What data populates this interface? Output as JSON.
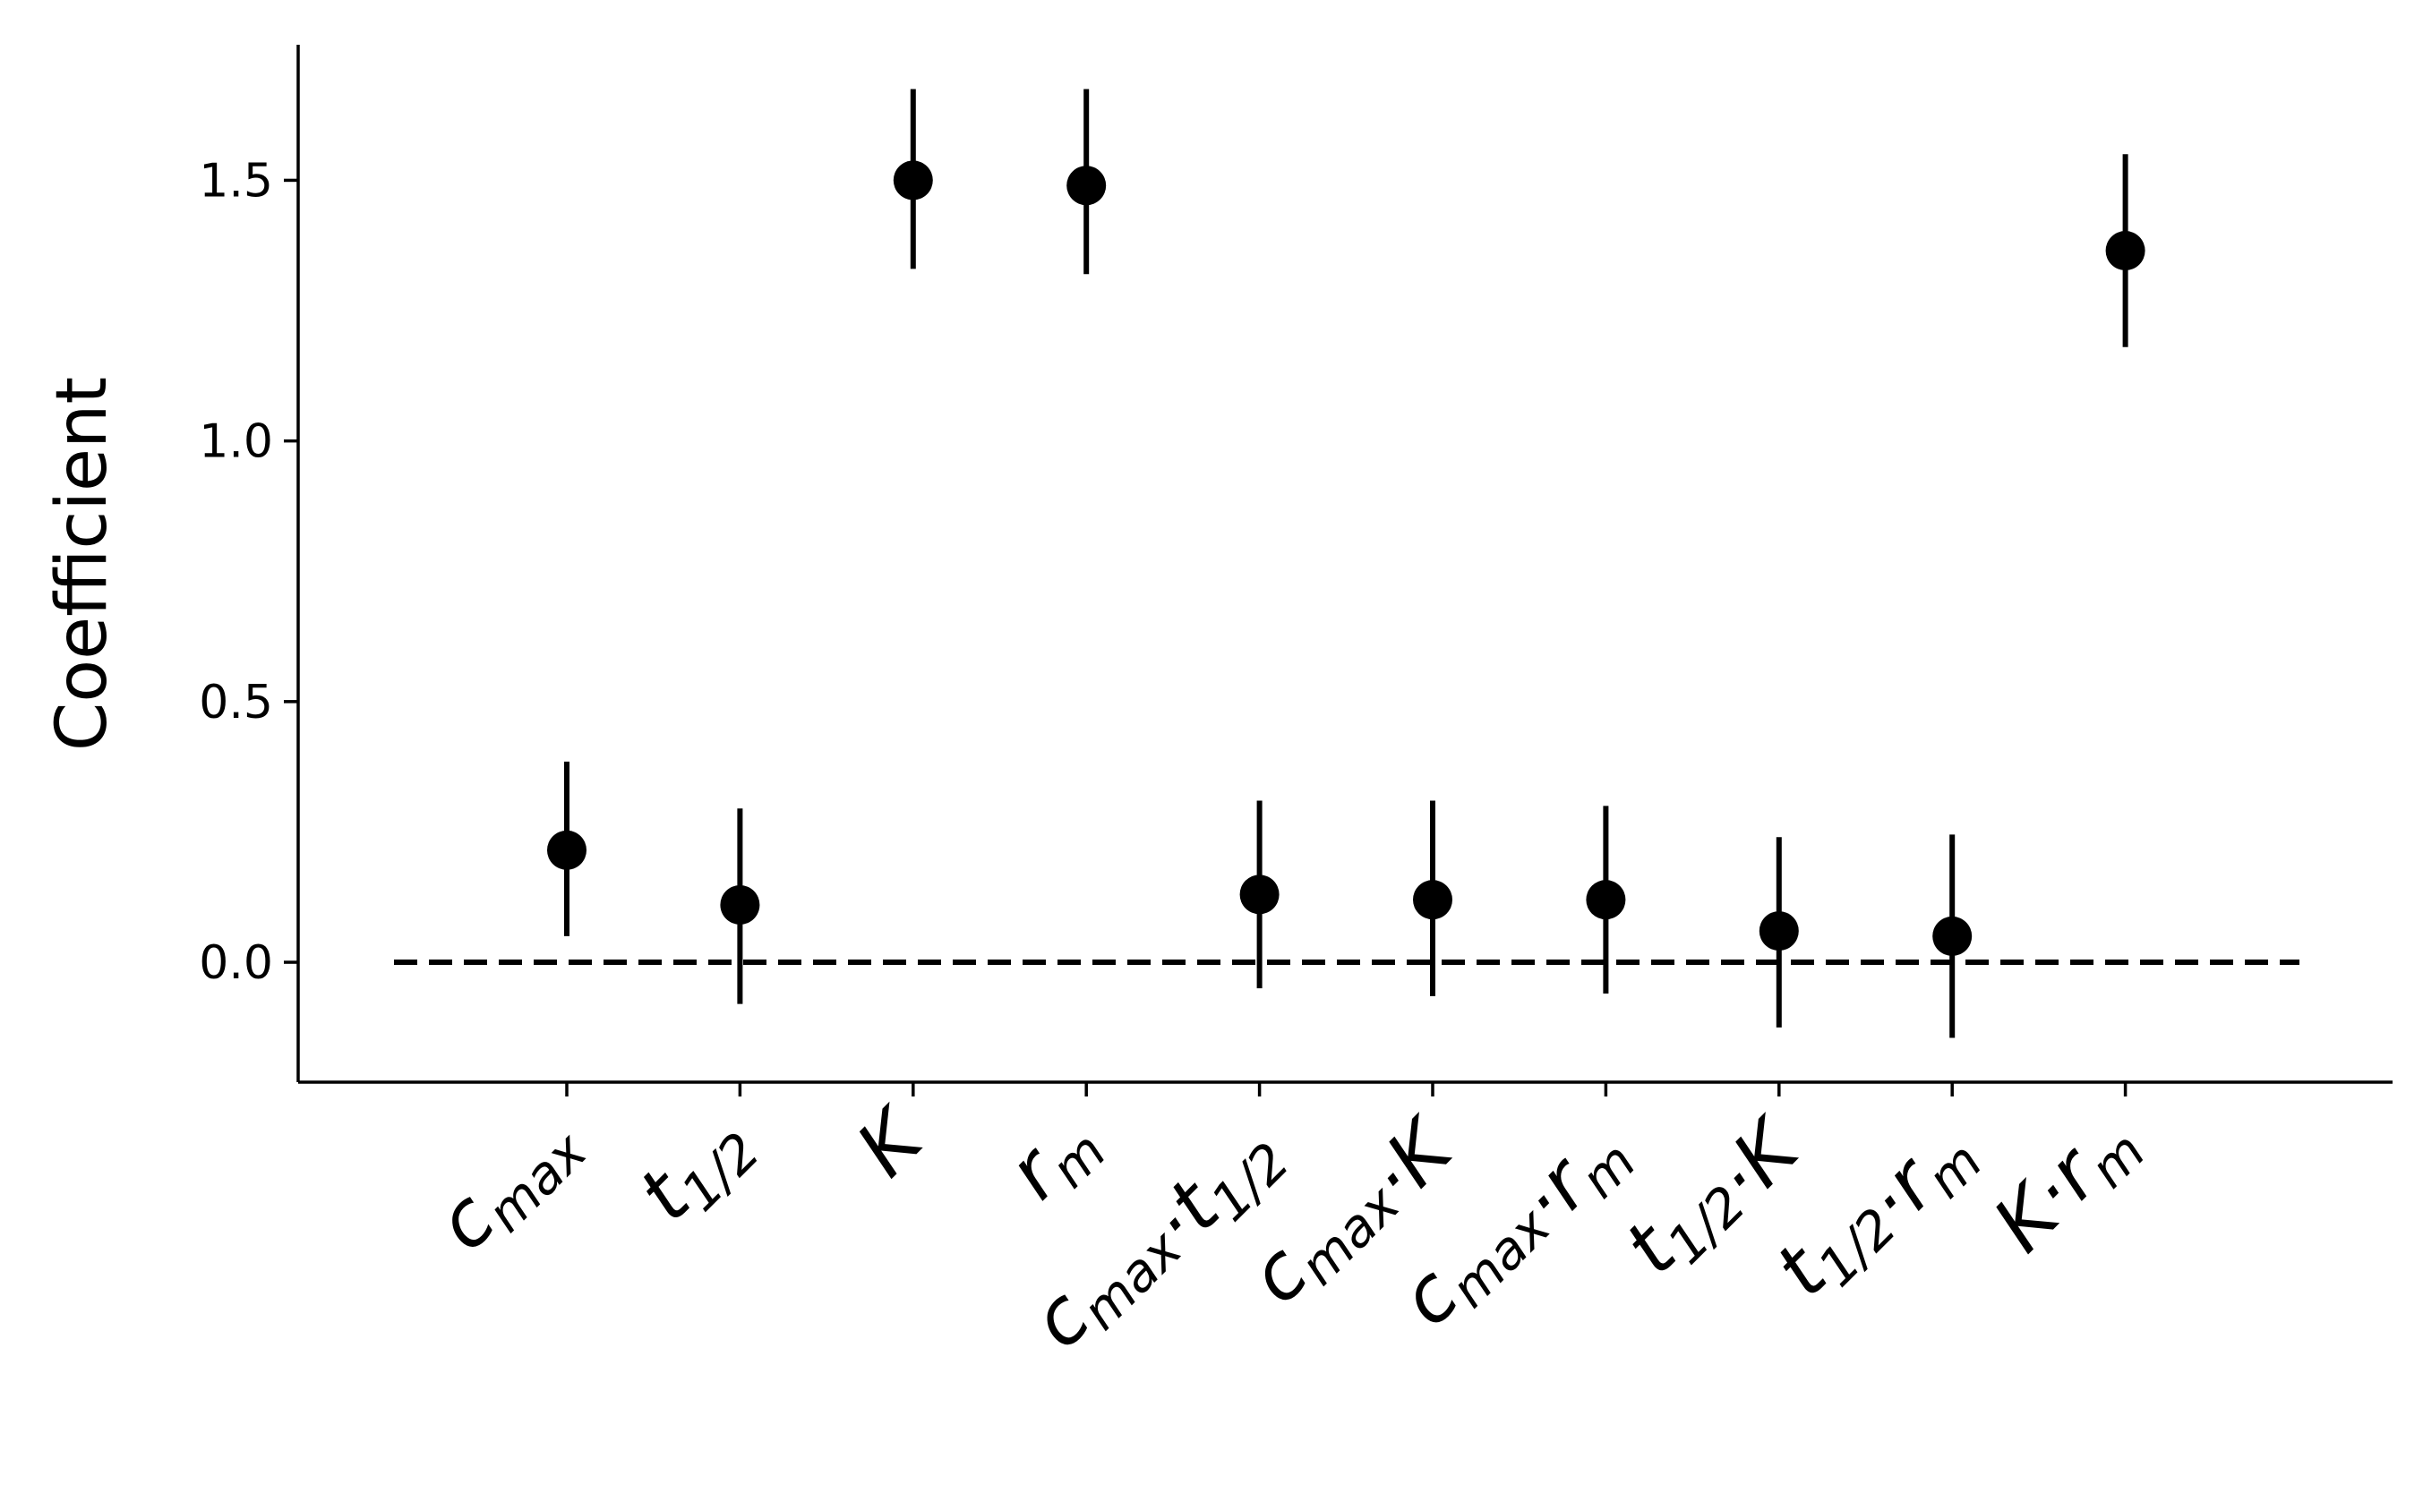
{
  "chart_data": {
    "type": "errorbar",
    "ylabel": "Coefficient",
    "xlabel": "",
    "title": "",
    "ylim": [
      -0.23,
      1.76
    ],
    "yticks": [
      0.0,
      0.5,
      1.0,
      1.5
    ],
    "ytick_labels": [
      "0.0",
      "0.5",
      "1.0",
      "1.5"
    ],
    "grid": false,
    "legend": "none",
    "reference_line": {
      "y": 0.0,
      "style": "dashed",
      "color": "#000000"
    },
    "marker_color": "#000000",
    "categories": [
      "c_max",
      "t_1/2",
      "K",
      "r_m",
      "c_max·t_1/2",
      "c_max·K",
      "c_max·r_m",
      "t_1/2·K",
      "t_1/2·r_m",
      "K·r_m"
    ],
    "category_parts": [
      [
        {
          "t": "c",
          "s": "max"
        }
      ],
      [
        {
          "t": "t",
          "s": "1/2"
        }
      ],
      [
        {
          "t": "K",
          "s": ""
        }
      ],
      [
        {
          "t": "r",
          "s": "m"
        }
      ],
      [
        {
          "t": "c",
          "s": "max"
        },
        {
          "t": "·",
          "s": ""
        },
        {
          "t": "t",
          "s": "1/2"
        }
      ],
      [
        {
          "t": "c",
          "s": "max"
        },
        {
          "t": "·",
          "s": ""
        },
        {
          "t": "K",
          "s": ""
        }
      ],
      [
        {
          "t": "c",
          "s": "max"
        },
        {
          "t": "·",
          "s": ""
        },
        {
          "t": "r",
          "s": "m"
        }
      ],
      [
        {
          "t": "t",
          "s": "1/2"
        },
        {
          "t": "·",
          "s": ""
        },
        {
          "t": "K",
          "s": ""
        }
      ],
      [
        {
          "t": "t",
          "s": "1/2"
        },
        {
          "t": "·",
          "s": ""
        },
        {
          "t": "r",
          "s": "m"
        }
      ],
      [
        {
          "t": "K",
          "s": ""
        },
        {
          "t": "·",
          "s": ""
        },
        {
          "t": "r",
          "s": "m"
        }
      ]
    ],
    "values": [
      0.215,
      0.11,
      1.5,
      1.49,
      0.13,
      0.12,
      0.12,
      0.06,
      0.05,
      1.365
    ],
    "ci_lower": [
      0.05,
      -0.08,
      1.33,
      1.32,
      -0.05,
      -0.065,
      -0.06,
      -0.125,
      -0.145,
      1.18
    ],
    "ci_upper": [
      0.385,
      0.295,
      1.675,
      1.675,
      0.31,
      0.31,
      0.3,
      0.24,
      0.245,
      1.55
    ]
  }
}
